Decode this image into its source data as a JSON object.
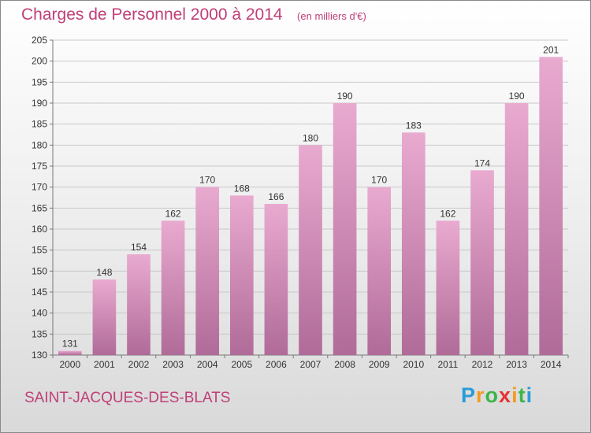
{
  "chart_data": {
    "type": "bar",
    "title": "Charges de Personnel 2000 à 2014",
    "subtitle": "(en milliers d'€)",
    "categories": [
      "2000",
      "2001",
      "2002",
      "2003",
      "2004",
      "2005",
      "2006",
      "2007",
      "2008",
      "2009",
      "2010",
      "2011",
      "2012",
      "2013",
      "2014"
    ],
    "values": [
      131,
      148,
      154,
      162,
      170,
      168,
      166,
      180,
      190,
      170,
      183,
      162,
      174,
      190,
      201
    ],
    "ylim": [
      130,
      205
    ],
    "yticks": [
      130,
      135,
      140,
      145,
      150,
      155,
      160,
      165,
      170,
      175,
      180,
      185,
      190,
      195,
      200,
      205
    ],
    "grid": true,
    "legend": "none",
    "bar_color_top": "#e9aad0",
    "bar_color_bottom": "#b06b98"
  },
  "footer": {
    "commune": "SAINT-JACQUES-DES-BLATS"
  },
  "logo": {
    "letters": [
      "P",
      "r",
      "o",
      "x",
      "i",
      "t",
      "i"
    ],
    "colors": [
      "#2b9bd8",
      "#f39a1f",
      "#3cb54a",
      "#e8312f",
      "#f39a1f",
      "#3cb54a",
      "#2b9bd8"
    ]
  }
}
